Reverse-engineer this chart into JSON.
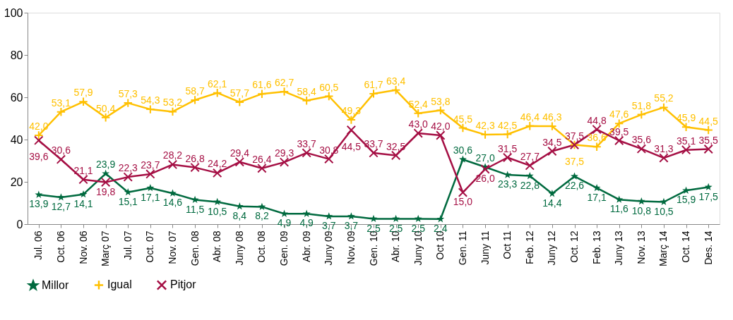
{
  "chart_data": {
    "type": "line",
    "categories": [
      "Jul. 06",
      "Oct. 06",
      "Nov. 06",
      "Març 07",
      "Jul. 07",
      "Oct. 07",
      "Nov. 07",
      "Gen. 08",
      "Abr. 08",
      "Juny 08",
      "Oct. 08",
      "Gen. 09",
      "Abr. 09",
      "Juny 09",
      "Nov. 09",
      "Gen. 10",
      "Abr. 10",
      "Juny 10",
      "Oct 10",
      "Gen. 11",
      "Juny 11",
      "Oct 11",
      "Feb. 12",
      "Juny 12",
      "Oct. 12",
      "Feb. 13",
      "Juny 13",
      "Nov. 13",
      "Març 14",
      "Oct. 14",
      "Des. 14"
    ],
    "series": [
      {
        "name": "Millor",
        "color": "#006a3f",
        "marker": "star",
        "values": [
          13.9,
          12.7,
          14.1,
          23.9,
          15.1,
          17.1,
          14.6,
          11.5,
          10.5,
          8.4,
          8.2,
          4.9,
          4.9,
          3.7,
          3.7,
          2.5,
          2.5,
          2.5,
          2.4,
          30.6,
          27.0,
          23.3,
          22.8,
          14.4,
          22.6,
          17.1,
          11.6,
          10.8,
          10.5,
          15.9,
          17.5
        ],
        "value_labels": [
          "13,9",
          "12,7",
          "14,1",
          "23,9",
          "15,1",
          "17,1",
          "14,6",
          "11,5",
          "10,5",
          "8,4",
          "8,2",
          "4,9",
          "4,9",
          "3,7",
          "3,7",
          "2,5",
          "2,5",
          "2,5",
          "2,4",
          "30,6",
          "27,0",
          "23,3",
          "22,8",
          "14,4",
          "22,6",
          "17,1",
          "11,6",
          "10,8",
          "10,5",
          "15,9",
          "17,5"
        ]
      },
      {
        "name": "Igual",
        "color": "#ffc000",
        "marker": "cross",
        "values": [
          42.0,
          53.1,
          57.9,
          50.4,
          57.3,
          54.3,
          53.2,
          58.7,
          62.1,
          57.7,
          61.6,
          62.7,
          58.4,
          60.5,
          49.3,
          61.7,
          63.4,
          52.4,
          53.8,
          45.5,
          42.3,
          42.5,
          46.4,
          46.3,
          37.5,
          36.6,
          47.6,
          51.8,
          55.2,
          45.9,
          44.5
        ],
        "value_labels": [
          "42,0",
          "53,1",
          "57,9",
          "50,4",
          "57,3",
          "54,3",
          "53,2",
          "58,7",
          "62,1",
          "57,7",
          "61,6",
          "62,7",
          "58,4",
          "60,5",
          "49,3",
          "61,7",
          "63,4",
          "52,4",
          "53,8",
          "45,5",
          "42,3",
          "42,5",
          "46,4",
          "46,3",
          "37,5",
          "36,6",
          "47,6",
          "51,8",
          "55,2",
          "45,9",
          "44,5"
        ]
      },
      {
        "name": "Pitjor",
        "color": "#a50f44",
        "marker": "x",
        "values": [
          39.6,
          30.6,
          21.1,
          19.8,
          22.3,
          23.7,
          28.2,
          26.8,
          24.2,
          29.4,
          26.4,
          29.3,
          33.7,
          30.8,
          44.5,
          33.7,
          32.5,
          43.0,
          42.0,
          15.0,
          26.0,
          31.5,
          27.7,
          34.5,
          37.5,
          44.8,
          39.5,
          35.6,
          31.3,
          35.1,
          35.5
        ],
        "value_labels": [
          "39,6",
          "30,6",
          "21,1",
          "19,8",
          "22,3",
          "23,7",
          "28,2",
          "26,8",
          "24,2",
          "29,4",
          "26,4",
          "29,3",
          "33,7",
          "30,8",
          "44,5",
          "33,7",
          "32,5",
          "43,0",
          "42,0",
          "15,0",
          "26,0",
          "31,5",
          "27,7",
          "34,5",
          "37,5",
          "44,8",
          "39,5",
          "35,6",
          "31,3",
          "35,1",
          "35,5"
        ]
      }
    ],
    "ylim": [
      0,
      100
    ],
    "yticks": [
      0,
      20,
      40,
      60,
      80,
      100
    ],
    "grid": false,
    "legend": "bottom",
    "line_style": "solid"
  }
}
